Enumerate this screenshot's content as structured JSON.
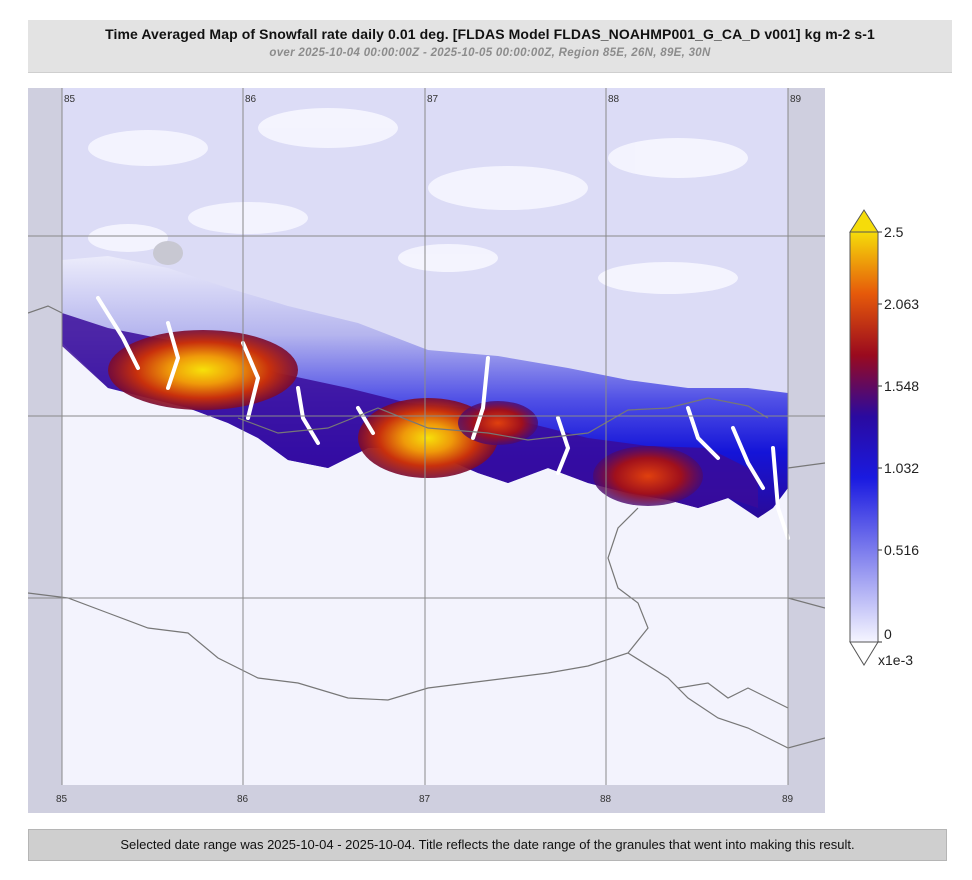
{
  "title": "Time Averaged Map of Snowfall rate daily 0.01 deg. [FLDAS Model FLDAS_NOAHMP001_G_CA_D v001] kg m-2 s-1",
  "subtitle": "over 2025-10-04 00:00:00Z - 2025-10-05 00:00:00Z, Region 85E, 26N, 89E, 30N",
  "footer": "Selected date range was 2025-10-04 - 2025-10-04. Title reflects the date range of the granules that went into making this result.",
  "map": {
    "lon_range": [
      84.8,
      89.2
    ],
    "lat_range": [
      26.0,
      30.0
    ],
    "lon_ticks": [
      "85",
      "86",
      "87",
      "88",
      "89"
    ],
    "lat_gridlines": [
      27,
      28,
      29
    ]
  },
  "colorbar": {
    "tick_labels": [
      "2.5",
      "2.063",
      "1.548",
      "1.032",
      "0.516",
      "0"
    ],
    "multiplier": "x1e-3",
    "colors": [
      "#f5f5ff",
      "#9494f0",
      "#1a1ae0",
      "#2a0aa0",
      "#9a0a1e",
      "#e65a0a",
      "#f5dc0a"
    ],
    "top_triangle_color": "#f5dc0a",
    "bottom_triangle_color": "#ffffff"
  }
}
